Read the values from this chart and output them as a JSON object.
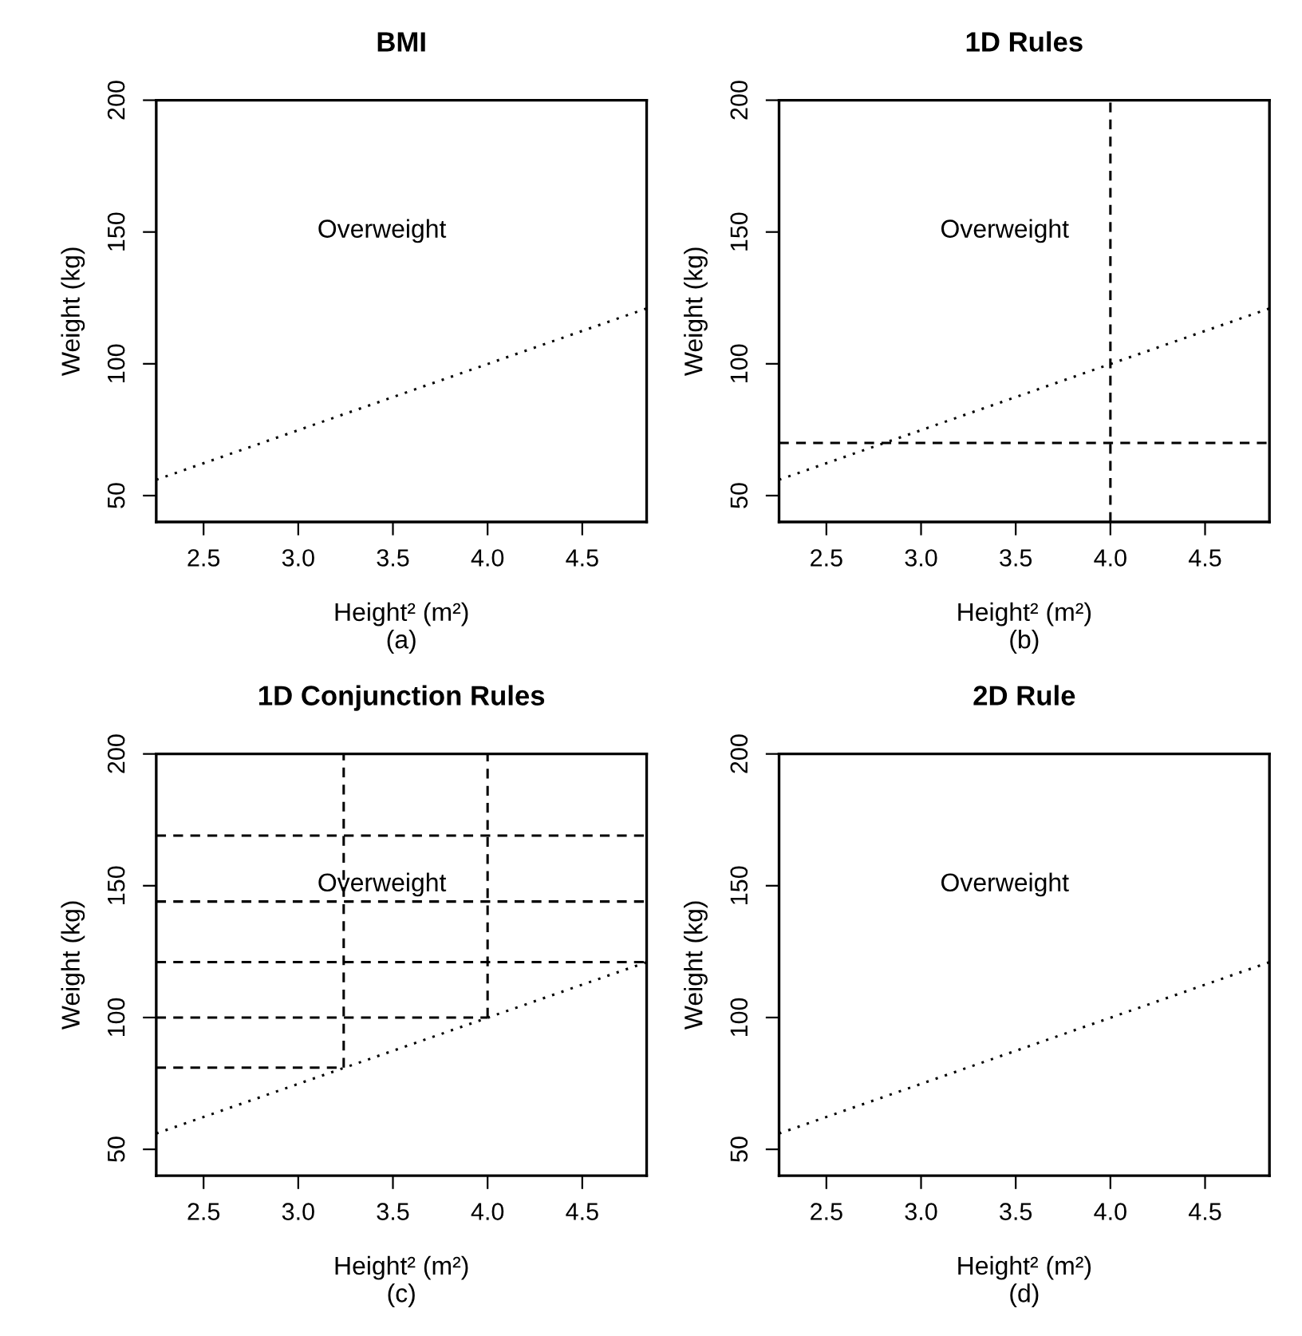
{
  "chart_data": [
    {
      "type": "line",
      "title": "BMI",
      "xlabel": "Height² (m²)",
      "ylabel": "Weight (kg)",
      "xlim": [
        2.25,
        4.84
      ],
      "ylim": [
        40,
        200
      ],
      "xticks": [
        {
          "value": 2.5,
          "label": "2.5"
        },
        {
          "value": 3.0,
          "label": "3.0"
        },
        {
          "value": 3.5,
          "label": "3.5"
        },
        {
          "value": 4.0,
          "label": "4.0"
        },
        {
          "value": 4.5,
          "label": "4.5"
        }
      ],
      "yticks": [
        50,
        100,
        150,
        200
      ],
      "grid": false,
      "series": [
        {
          "color": "#000000",
          "x": [
            2.25,
            4.84
          ],
          "values": [
            56,
            121
          ],
          "line_style": "dotted"
        }
      ],
      "annotations": [
        "Overweight",
        "(a)"
      ]
    },
    {
      "type": "line",
      "title": "1D Rules",
      "xlabel": "Height² (m²)",
      "ylabel": "Weight (kg)",
      "xlim": [
        2.25,
        4.84
      ],
      "ylim": [
        40,
        200
      ],
      "xticks": [
        {
          "value": 2.5,
          "label": "2.5"
        },
        {
          "value": 3.0,
          "label": "3.0"
        },
        {
          "value": 3.5,
          "label": "3.5"
        },
        {
          "value": 4.0,
          "label": "4.0"
        },
        {
          "value": 4.5,
          "label": "4.5"
        }
      ],
      "yticks": [
        50,
        100,
        150,
        200
      ],
      "grid": false,
      "series": [
        {
          "color": "#000000",
          "x": [
            2.25,
            4.84
          ],
          "values": [
            56,
            121
          ],
          "line_style": "dotted"
        }
      ],
      "ref_lines": [
        {
          "axis": "y",
          "value": 70,
          "color": "#000000",
          "line_style": "dashed"
        },
        {
          "axis": "x",
          "value": 4.0,
          "color": "#000000",
          "line_style": "dashed"
        }
      ],
      "annotations": [
        "Overweight",
        "(b)"
      ]
    },
    {
      "type": "line",
      "title": "1D Conjunction Rules",
      "xlabel": "Height² (m²)",
      "ylabel": "Weight (kg)",
      "xlim": [
        2.25,
        4.84
      ],
      "ylim": [
        40,
        200
      ],
      "xticks": [
        {
          "value": 2.5,
          "label": "2.5"
        },
        {
          "value": 3.0,
          "label": "3.0"
        },
        {
          "value": 3.5,
          "label": "3.5"
        },
        {
          "value": 4.0,
          "label": "4.0"
        },
        {
          "value": 4.5,
          "label": "4.5"
        }
      ],
      "yticks": [
        50,
        100,
        150,
        200
      ],
      "grid": false,
      "series": [
        {
          "color": "#000000",
          "x": [
            2.25,
            4.84
          ],
          "values": [
            56,
            121
          ],
          "line_style": "dotted"
        },
        {
          "color": "#000000",
          "x": [
            2.25,
            3.24
          ],
          "values": [
            81,
            81
          ],
          "line_style": "dashed"
        },
        {
          "color": "#000000",
          "x": [
            2.25,
            4.0
          ],
          "values": [
            100,
            100
          ],
          "line_style": "dashed"
        },
        {
          "color": "#000000",
          "x": [
            3.24,
            3.24
          ],
          "values": [
            81,
            200
          ],
          "line_style": "dashed"
        },
        {
          "color": "#000000",
          "x": [
            4.0,
            4.0
          ],
          "values": [
            100,
            200
          ],
          "line_style": "dashed"
        }
      ],
      "ref_lines": [
        {
          "axis": "y",
          "value": 121,
          "color": "#000000",
          "line_style": "dashed"
        },
        {
          "axis": "y",
          "value": 144,
          "color": "#000000",
          "line_style": "dashed"
        },
        {
          "axis": "y",
          "value": 169,
          "color": "#000000",
          "line_style": "dashed"
        }
      ],
      "annotations": [
        "Overweight",
        "(c)"
      ]
    },
    {
      "type": "line",
      "title": "2D Rule",
      "xlabel": "Height² (m²)",
      "ylabel": "Weight (kg)",
      "xlim": [
        2.25,
        4.84
      ],
      "ylim": [
        40,
        200
      ],
      "xticks": [
        {
          "value": 2.5,
          "label": "2.5"
        },
        {
          "value": 3.0,
          "label": "3.0"
        },
        {
          "value": 3.5,
          "label": "3.5"
        },
        {
          "value": 4.0,
          "label": "4.0"
        },
        {
          "value": 4.5,
          "label": "4.5"
        }
      ],
      "yticks": [
        50,
        100,
        150,
        200
      ],
      "grid": false,
      "series": [
        {
          "color": "#000000",
          "x": [
            2.25,
            4.84
          ],
          "values": [
            56,
            121
          ],
          "line_style": "dotted"
        }
      ],
      "annotations": [
        "Overweight",
        "(d)"
      ]
    }
  ]
}
